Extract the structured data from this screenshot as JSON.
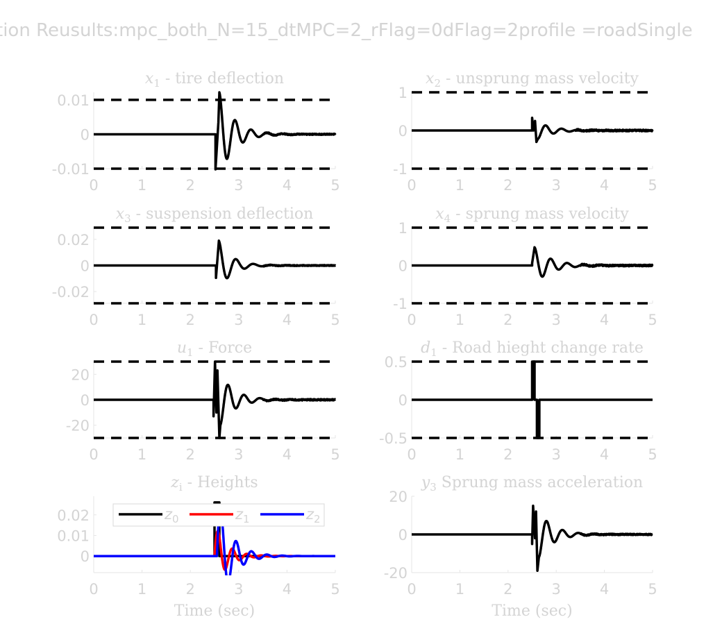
{
  "figure": {
    "suptitle": "tion Reusults:mpc_both_N=15_dtMPC=2_rFlag=0dFlag=2profile =roadSingle"
  },
  "chart_data": [
    {
      "type": "line",
      "title": {
        "base": "x",
        "sub": "1",
        "rest": " - tire deflection"
      },
      "xlim": [
        0,
        5
      ],
      "ylim": [
        -0.01,
        0.0122
      ],
      "xticks": [
        "0",
        "1",
        "2",
        "3",
        "4",
        "5"
      ],
      "yticks": [
        {
          "v": 0.01,
          "label": "0.01"
        },
        {
          "v": 0,
          "label": "0"
        },
        {
          "v": -0.01,
          "label": "-0.01"
        }
      ],
      "bounds": [
        0.01,
        -0.01
      ],
      "xlabel": "",
      "series": [
        {
          "color": "#000000",
          "steps": [
            [
              2.52,
              -0.0102
            ],
            [
              2.58,
              0.0035
            ]
          ],
          "osc": {
            "t0": 2.6,
            "A": 0.0122,
            "T": 0.33,
            "tau": 0.3,
            "noise": 0.00015,
            "after": 3.5
          }
        }
      ]
    },
    {
      "type": "line",
      "title": {
        "base": "x",
        "sub": "2",
        "rest": " - unsprung mass velocity"
      },
      "xlim": [
        0,
        5
      ],
      "ylim": [
        -1,
        1
      ],
      "xticks": [
        "0",
        "1",
        "2",
        "3",
        "4",
        "5"
      ],
      "yticks": [
        {
          "v": 1,
          "label": "1"
        },
        {
          "v": 0,
          "label": "0"
        },
        {
          "v": -1,
          "label": "-1"
        }
      ],
      "bounds": [
        1,
        -1
      ],
      "xlabel": "",
      "series": [
        {
          "color": "#000000",
          "steps": [
            [
              2.5,
              0.33
            ],
            [
              2.53,
              0.0
            ],
            [
              2.56,
              0.25
            ],
            [
              2.59,
              -0.3
            ]
          ],
          "osc": {
            "t0": 2.62,
            "A": -0.22,
            "T": 0.33,
            "tau": 0.32,
            "noise": 0.02,
            "after": 3.4
          }
        }
      ]
    },
    {
      "type": "line",
      "title": {
        "base": "x",
        "sub": "3",
        "rest": " - suspension deflection"
      },
      "xlim": [
        0,
        5
      ],
      "ylim": [
        -0.029,
        0.029
      ],
      "xticks": [
        "0",
        "1",
        "2",
        "3",
        "4",
        "5"
      ],
      "yticks": [
        {
          "v": 0.02,
          "label": "0.02"
        },
        {
          "v": 0,
          "label": "0"
        },
        {
          "v": -0.02,
          "label": "-0.02"
        }
      ],
      "bounds": [
        0.029,
        -0.029
      ],
      "xlabel": "",
      "series": [
        {
          "color": "#000000",
          "steps": [
            [
              2.53,
              -0.0095
            ]
          ],
          "osc": {
            "t0": 2.59,
            "A": 0.019,
            "T": 0.36,
            "tau": 0.26,
            "noise": 0.0003,
            "after": 3.5
          }
        }
      ]
    },
    {
      "type": "line",
      "title": {
        "base": "x",
        "sub": "4",
        "rest": " - sprung mass velocity"
      },
      "xlim": [
        0,
        5
      ],
      "ylim": [
        -1,
        1
      ],
      "xticks": [
        "0",
        "1",
        "2",
        "3",
        "4",
        "5"
      ],
      "yticks": [
        {
          "v": 1,
          "label": "1"
        },
        {
          "v": 0,
          "label": "0"
        },
        {
          "v": -1,
          "label": "-1"
        }
      ],
      "bounds": [
        1,
        -1
      ],
      "xlabel": "",
      "series": [
        {
          "color": "#000000",
          "steps": [
            [
              2.5,
              0.06
            ]
          ],
          "osc": {
            "t0": 2.55,
            "A": 0.48,
            "T": 0.34,
            "tau": 0.34,
            "noise": 0.02,
            "after": 3.5
          }
        }
      ]
    },
    {
      "type": "line",
      "title": {
        "base": "u",
        "sub": "1",
        "rest": " - Force"
      },
      "xlim": [
        0,
        5
      ],
      "ylim": [
        -30,
        30
      ],
      "xticks": [
        "0",
        "1",
        "2",
        "3",
        "4",
        "5"
      ],
      "yticks": [
        {
          "v": 20,
          "label": "20"
        },
        {
          "v": 0,
          "label": "0"
        },
        {
          "v": -20,
          "label": "-20"
        }
      ],
      "bounds": [
        30,
        -30
      ],
      "xlabel": "",
      "series": [
        {
          "color": "#000000",
          "steps": [
            [
              2.48,
              -13
            ],
            [
              2.51,
              30
            ],
            [
              2.54,
              -10
            ],
            [
              2.56,
              23
            ],
            [
              2.6,
              -30
            ]
          ],
          "osc": {
            "t0": 2.62,
            "A": -20,
            "T": 0.33,
            "tau": 0.3,
            "noise": 0.5,
            "after": 3.5
          }
        }
      ]
    },
    {
      "type": "line",
      "title": {
        "base": "d",
        "sub": "1",
        "rest": " - Road hieght change rate"
      },
      "xlim": [
        0,
        5
      ],
      "ylim": [
        -0.5,
        0.5
      ],
      "xticks": [
        "0",
        "1",
        "2",
        "3",
        "4",
        "5"
      ],
      "yticks": [
        {
          "v": 0.5,
          "label": "0.5"
        },
        {
          "v": 0,
          "label": "0"
        },
        {
          "v": -0.5,
          "label": "-0.5"
        }
      ],
      "bounds": [
        0.5,
        -0.5
      ],
      "xlabel": "",
      "series": [
        {
          "color": "#000000",
          "pulses": [
            [
              2.5,
              2.55,
              0.5
            ],
            [
              2.6,
              2.65,
              -0.5
            ]
          ]
        }
      ]
    },
    {
      "type": "line",
      "title": {
        "base": "z",
        "sub": "i",
        "rest": " - Heights"
      },
      "xlim": [
        0,
        5
      ],
      "ylim": [
        -0.008,
        0.029
      ],
      "xticks": [
        "0",
        "1",
        "2",
        "3",
        "4",
        "5"
      ],
      "yticks": [
        {
          "v": 0.02,
          "label": "0.02"
        },
        {
          "v": 0.01,
          "label": "0.01"
        },
        {
          "v": 0,
          "label": "0"
        }
      ],
      "bounds": [],
      "xlabel": "Time (sec)",
      "legend": {
        "placement": "top",
        "entries": [
          {
            "base": "z",
            "sub": "0",
            "color": "#000000"
          },
          {
            "base": "z",
            "sub": "1",
            "color": "#ff0000"
          },
          {
            "base": "z",
            "sub": "2",
            "color": "#0000ff"
          }
        ]
      },
      "series": [
        {
          "color": "#000000",
          "rect": [
            2.5,
            2.6,
            0.026
          ]
        },
        {
          "color": "#ff0000",
          "osc": {
            "t0": 2.5,
            "A": 0.016,
            "T": 0.3,
            "tau": 0.25,
            "noise": 0,
            "after": 5,
            "phase": -0.25
          }
        },
        {
          "color": "#0000ff",
          "osc": {
            "t0": 2.55,
            "A": 0.03,
            "T": 0.32,
            "tau": 0.28,
            "noise": 0,
            "after": 5,
            "phase": -0.25
          }
        }
      ]
    },
    {
      "type": "line",
      "title": {
        "base": "y",
        "sub": "3",
        "rest": " Sprung mass acceleration"
      },
      "xlim": [
        0,
        5
      ],
      "ylim": [
        -20,
        20
      ],
      "xticks": [
        "0",
        "1",
        "2",
        "3",
        "4",
        "5"
      ],
      "yticks": [
        {
          "v": 20,
          "label": "20"
        },
        {
          "v": 0,
          "label": "0"
        },
        {
          "v": -20,
          "label": "-20"
        }
      ],
      "bounds": [],
      "xlabel": "Time (sec)",
      "series": [
        {
          "color": "#000000",
          "steps": [
            [
              2.5,
              -5
            ],
            [
              2.52,
              15
            ],
            [
              2.56,
              -2
            ],
            [
              2.58,
              12
            ],
            [
              2.61,
              -19
            ]
          ],
          "osc": {
            "t0": 2.64,
            "A": -12,
            "T": 0.33,
            "tau": 0.3,
            "noise": 0.3,
            "after": 3.5
          }
        }
      ]
    }
  ]
}
